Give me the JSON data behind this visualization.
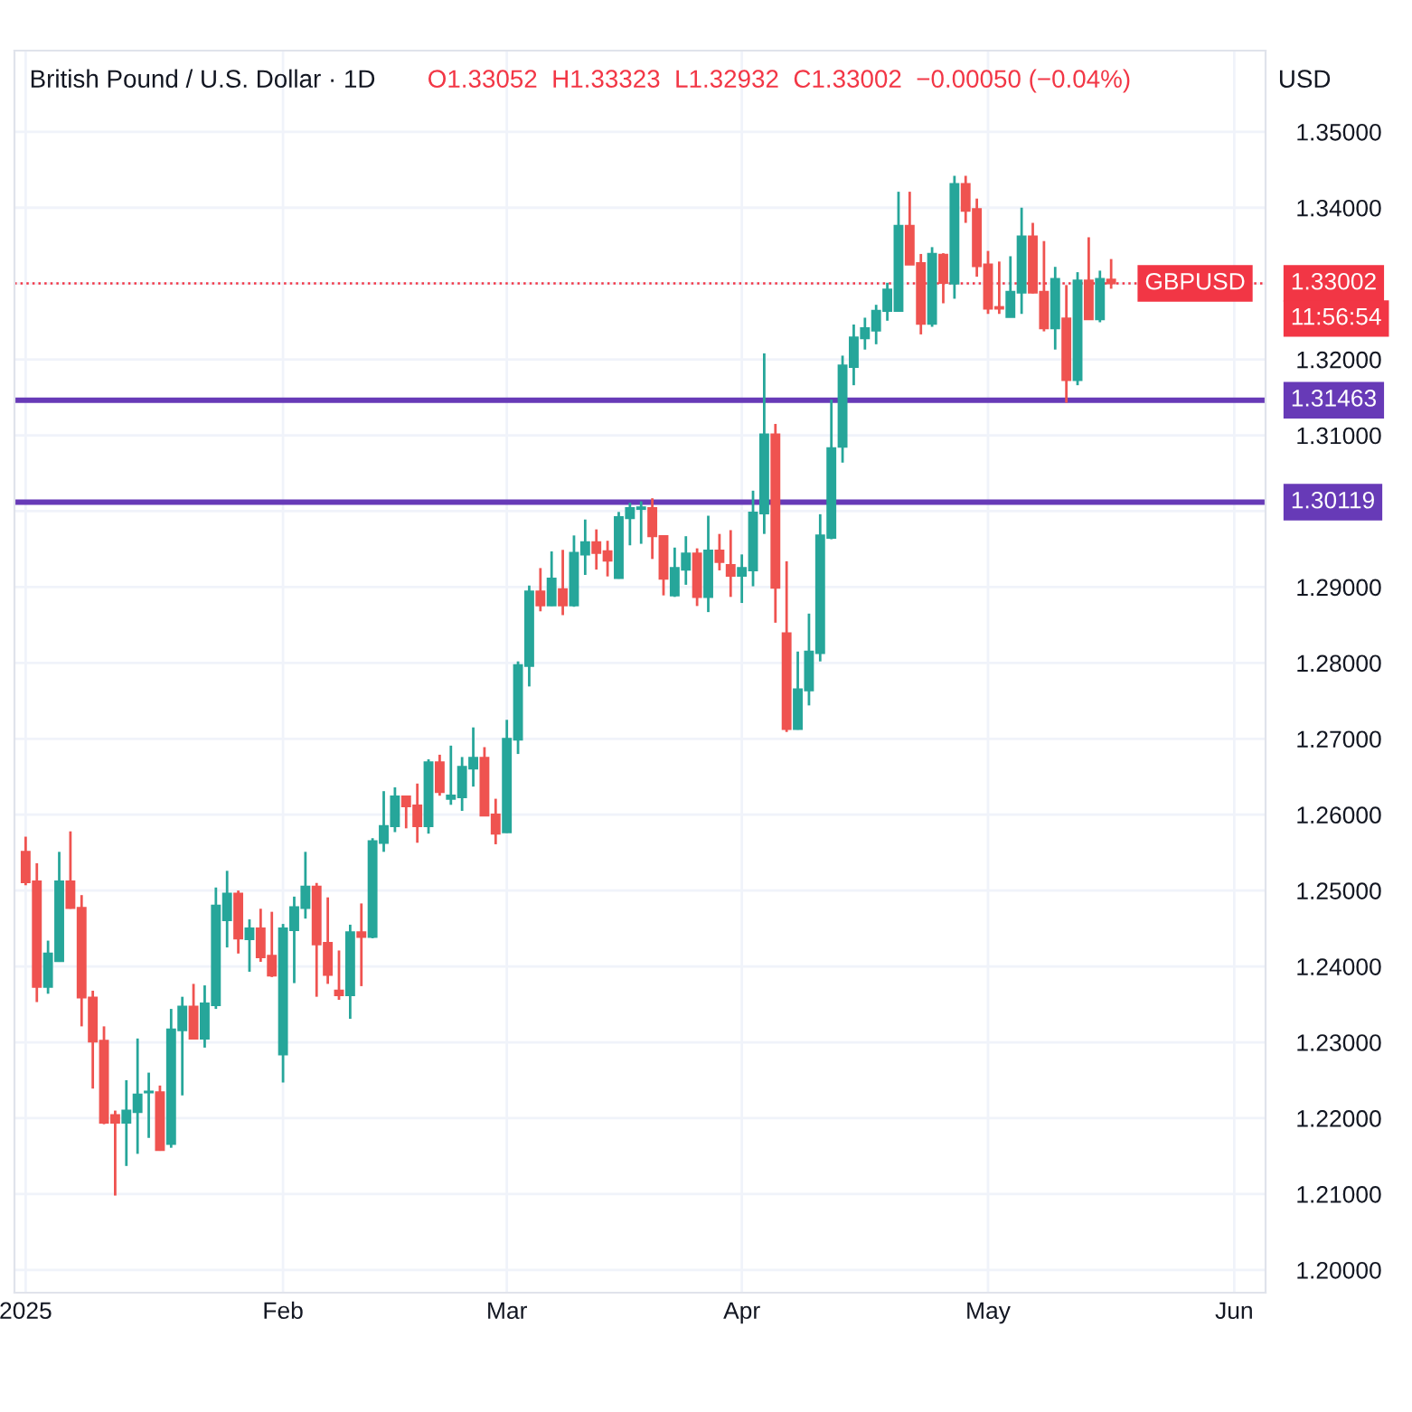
{
  "chart_data": {
    "type": "candlestick",
    "title": "British Pound / U.S. Dollar · 1D",
    "subtitle": "O1.33052  H1.33323  L1.32932  C1.33002  −0.00050 (−0.04%)",
    "ylabel": "USD",
    "categories": [
      "2025",
      null,
      null,
      null,
      null,
      null,
      null,
      null,
      null,
      null,
      null,
      null,
      null,
      null,
      null,
      null,
      null,
      null,
      null,
      null,
      null,
      null,
      null,
      "Feb",
      null,
      null,
      null,
      null,
      null,
      null,
      null,
      null,
      null,
      null,
      null,
      null,
      null,
      null,
      null,
      null,
      null,
      null,
      null,
      "Mar",
      null,
      null,
      null,
      null,
      null,
      null,
      null,
      null,
      null,
      null,
      null,
      null,
      null,
      null,
      null,
      null,
      null,
      null,
      null,
      null,
      "Apr",
      null,
      null,
      null,
      null,
      null,
      null,
      null,
      null,
      null,
      null,
      null,
      null,
      null,
      null,
      null,
      null,
      null,
      null,
      null,
      null,
      null,
      "May",
      null,
      null,
      null,
      null,
      null,
      null,
      null,
      null,
      null,
      null,
      null,
      null,
      null,
      null,
      null,
      null,
      null,
      null,
      null,
      null,
      null,
      "Jun",
      null,
      null
    ],
    "ohlc": [
      [
        1.2551,
        1.2571,
        1.2507,
        1.2511
      ],
      [
        1.2512,
        1.2536,
        1.2353,
        1.2373
      ],
      [
        1.2373,
        1.2434,
        1.2364,
        1.2417
      ],
      [
        1.2407,
        1.2551,
        1.2406,
        1.2512
      ],
      [
        1.2512,
        1.2578,
        1.2476,
        1.2477
      ],
      [
        1.2477,
        1.2494,
        1.2321,
        1.2359
      ],
      [
        1.2359,
        1.2368,
        1.2239,
        1.2301
      ],
      [
        1.2302,
        1.2321,
        1.2192,
        1.2194
      ],
      [
        1.2204,
        1.221,
        1.2098,
        1.2194
      ],
      [
        1.2194,
        1.225,
        1.2137,
        1.221
      ],
      [
        1.2208,
        1.2305,
        1.2153,
        1.2231
      ],
      [
        1.2234,
        1.226,
        1.2174,
        1.2235
      ],
      [
        1.2234,
        1.2243,
        1.2157,
        1.2158
      ],
      [
        1.2166,
        1.2344,
        1.2161,
        1.2317
      ],
      [
        1.2316,
        1.236,
        1.223,
        1.2347
      ],
      [
        1.2347,
        1.2377,
        1.2304,
        1.2305
      ],
      [
        1.2305,
        1.2375,
        1.2293,
        1.2351
      ],
      [
        1.2349,
        1.2504,
        1.2344,
        1.248
      ],
      [
        1.2461,
        1.2526,
        1.2425,
        1.2496
      ],
      [
        1.2496,
        1.25,
        1.2417,
        1.2437
      ],
      [
        1.2436,
        1.2462,
        1.2393,
        1.245
      ],
      [
        1.245,
        1.2476,
        1.2406,
        1.2412
      ],
      [
        1.2414,
        1.2472,
        1.2386,
        1.2388
      ],
      [
        1.2284,
        1.2456,
        1.2247,
        1.245
      ],
      [
        1.2448,
        1.2492,
        1.2378,
        1.2478
      ],
      [
        1.2477,
        1.2551,
        1.2463,
        1.2505
      ],
      [
        1.2505,
        1.251,
        1.236,
        1.2429
      ],
      [
        1.2431,
        1.2491,
        1.2377,
        1.2389
      ],
      [
        1.2368,
        1.2421,
        1.2356,
        1.2362
      ],
      [
        1.2362,
        1.2455,
        1.2331,
        1.2445
      ],
      [
        1.2445,
        1.2483,
        1.2374,
        1.2439
      ],
      [
        1.2439,
        1.2569,
        1.2437,
        1.2565
      ],
      [
        1.2563,
        1.2631,
        1.2551,
        1.2585
      ],
      [
        1.2585,
        1.2636,
        1.2577,
        1.2624
      ],
      [
        1.2624,
        1.2625,
        1.2582,
        1.2611
      ],
      [
        1.2612,
        1.2641,
        1.2563,
        1.2585
      ],
      [
        1.2585,
        1.2673,
        1.2575,
        1.2669
      ],
      [
        1.2669,
        1.2679,
        1.2625,
        1.263
      ],
      [
        1.2621,
        1.2691,
        1.2613,
        1.2625
      ],
      [
        1.2623,
        1.2676,
        1.2605,
        1.2663
      ],
      [
        1.2661,
        1.2715,
        1.2637,
        1.2675
      ],
      [
        1.2675,
        1.2689,
        1.2598,
        1.2599
      ],
      [
        1.26,
        1.2621,
        1.2561,
        1.2575
      ],
      [
        1.2577,
        1.2725,
        1.2576,
        1.27
      ],
      [
        1.2699,
        1.2802,
        1.268,
        1.2797
      ],
      [
        1.2796,
        1.2902,
        1.2769,
        1.2894
      ],
      [
        1.2894,
        1.2925,
        1.2868,
        1.2876
      ],
      [
        1.2876,
        1.2947,
        1.2875,
        1.2911
      ],
      [
        1.2897,
        1.2949,
        1.2863,
        1.2876
      ],
      [
        1.2876,
        1.2968,
        1.2874,
        1.2945
      ],
      [
        1.2943,
        1.2989,
        1.2916,
        1.2959
      ],
      [
        1.2959,
        1.2976,
        1.2923,
        1.2945
      ],
      [
        1.2947,
        1.2961,
        1.2914,
        1.2935
      ],
      [
        1.2912,
        1.2999,
        1.2911,
        1.2992
      ],
      [
        1.2991,
        1.3011,
        1.2955,
        1.3004
      ],
      [
        1.3003,
        1.3013,
        1.2957,
        1.3005
      ],
      [
        1.3004,
        1.3017,
        1.2937,
        1.2967
      ],
      [
        1.2967,
        1.2968,
        1.2889,
        1.2911
      ],
      [
        1.2889,
        1.2952,
        1.2887,
        1.2925
      ],
      [
        1.2923,
        1.2967,
        1.2903,
        1.2944
      ],
      [
        1.2944,
        1.2951,
        1.2875,
        1.2887
      ],
      [
        1.2887,
        1.2994,
        1.2867,
        1.2948
      ],
      [
        1.2948,
        1.297,
        1.2922,
        1.2933
      ],
      [
        1.2929,
        1.2975,
        1.2887,
        1.2915
      ],
      [
        1.2915,
        1.2943,
        1.2879,
        1.2925
      ],
      [
        1.2922,
        1.3027,
        1.2901,
        1.2998
      ],
      [
        1.2997,
        1.3208,
        1.297,
        1.3101
      ],
      [
        1.3101,
        1.3115,
        1.2853,
        1.2899
      ],
      [
        1.2839,
        1.2934,
        1.2709,
        1.2713
      ],
      [
        1.2713,
        1.2815,
        1.2712,
        1.2765
      ],
      [
        1.2764,
        1.2865,
        1.2744,
        1.2815
      ],
      [
        1.2813,
        1.2996,
        1.2802,
        1.2968
      ],
      [
        1.2965,
        1.3147,
        1.2963,
        1.3083
      ],
      [
        1.3085,
        1.3205,
        1.3064,
        1.3192
      ],
      [
        1.319,
        1.3246,
        1.3166,
        1.3229
      ],
      [
        1.3228,
        1.3255,
        1.3213,
        1.3241
      ],
      [
        1.3238,
        1.3272,
        1.322,
        1.3264
      ],
      [
        1.3264,
        1.3301,
        1.3251,
        1.3292
      ],
      [
        1.3264,
        1.3421,
        1.3263,
        1.3376
      ],
      [
        1.3376,
        1.3421,
        1.3325,
        1.3325
      ],
      [
        1.3327,
        1.3339,
        1.3233,
        1.3247
      ],
      [
        1.3247,
        1.3348,
        1.3243,
        1.3339
      ],
      [
        1.3338,
        1.334,
        1.3274,
        1.3301
      ],
      [
        1.33,
        1.3442,
        1.328,
        1.3431
      ],
      [
        1.3431,
        1.3442,
        1.338,
        1.3396
      ],
      [
        1.3398,
        1.3412,
        1.3309,
        1.3323
      ],
      [
        1.3325,
        1.3343,
        1.326,
        1.3267
      ],
      [
        1.3269,
        1.3329,
        1.326,
        1.3267
      ],
      [
        1.3256,
        1.3336,
        1.3256,
        1.3289
      ],
      [
        1.3288,
        1.34,
        1.326,
        1.3362
      ],
      [
        1.3362,
        1.338,
        1.3287,
        1.3288
      ],
      [
        1.3289,
        1.3356,
        1.3237,
        1.3241
      ],
      [
        1.3241,
        1.3322,
        1.3213,
        1.3306
      ],
      [
        1.3254,
        1.3298,
        1.3143,
        1.3173
      ],
      [
        1.3173,
        1.3315,
        1.3166,
        1.3304
      ],
      [
        1.3304,
        1.3361,
        1.3252,
        1.3253
      ],
      [
        1.3253,
        1.3317,
        1.3249,
        1.3306
      ],
      [
        1.33052,
        1.33323,
        1.32932,
        1.33002
      ],
      null,
      null,
      null,
      null,
      null,
      null,
      null,
      null,
      null,
      null,
      null,
      null,
      null
    ],
    "colors": [
      "#ef5350",
      "#ef5350",
      "#26a69a",
      "#26a69a",
      "#ef5350",
      "#ef5350",
      "#ef5350",
      "#ef5350",
      "#ef5350",
      "#26a69a",
      "#26a69a",
      "#26a69a",
      "#ef5350",
      "#26a69a",
      "#26a69a",
      "#ef5350",
      "#26a69a",
      "#26a69a",
      "#26a69a",
      "#ef5350",
      "#26a69a",
      "#ef5350",
      "#ef5350",
      "#26a69a",
      "#26a69a",
      "#26a69a",
      "#ef5350",
      "#ef5350",
      "#ef5350",
      "#26a69a",
      "#ef5350",
      "#26a69a",
      "#26a69a",
      "#26a69a",
      "#ef5350",
      "#ef5350",
      "#26a69a",
      "#ef5350",
      "#26a69a",
      "#26a69a",
      "#26a69a",
      "#ef5350",
      "#ef5350",
      "#26a69a",
      "#26a69a",
      "#26a69a",
      "#ef5350",
      "#26a69a",
      "#ef5350",
      "#26a69a",
      "#26a69a",
      "#ef5350",
      "#ef5350",
      "#26a69a",
      "#26a69a",
      "#26a69a",
      "#ef5350",
      "#ef5350",
      "#26a69a",
      "#26a69a",
      "#ef5350",
      "#26a69a",
      "#ef5350",
      "#ef5350",
      "#26a69a",
      "#26a69a",
      "#26a69a",
      "#ef5350",
      "#ef5350",
      "#26a69a",
      "#26a69a",
      "#26a69a",
      "#26a69a",
      "#26a69a",
      "#26a69a",
      "#26a69a",
      "#26a69a",
      "#26a69a",
      "#26a69a",
      "#ef5350",
      "#ef5350",
      "#26a69a",
      "#ef5350",
      "#26a69a",
      "#ef5350",
      "#ef5350",
      "#ef5350",
      "#ef5350",
      "#26a69a",
      "#26a69a",
      "#ef5350",
      "#ef5350",
      "#26a69a",
      "#ef5350",
      "#26a69a",
      "#ef5350",
      "#26a69a",
      "#ef5350",
      null,
      null,
      null,
      null,
      null,
      null,
      null,
      null,
      null,
      null,
      null,
      null,
      null
    ],
    "ylim": [
      1.197,
      1.3607
    ],
    "yticks": [
      {
        "value": 1.2,
        "label": "1.20000"
      },
      {
        "value": 1.21,
        "label": "1.21000"
      },
      {
        "value": 1.22,
        "label": "1.22000"
      },
      {
        "value": 1.23,
        "label": "1.23000"
      },
      {
        "value": 1.24,
        "label": "1.24000"
      },
      {
        "value": 1.25,
        "label": "1.25000"
      },
      {
        "value": 1.26,
        "label": "1.26000"
      },
      {
        "value": 1.27,
        "label": "1.27000"
      },
      {
        "value": 1.28,
        "label": "1.28000"
      },
      {
        "value": 1.29,
        "label": "1.29000"
      },
      {
        "value": 1.3,
        "label": null
      },
      {
        "value": 1.31,
        "label": "1.31000"
      },
      {
        "value": 1.32,
        "label": "1.32000"
      },
      {
        "value": 1.33,
        "label": null
      },
      {
        "value": 1.34,
        "label": "1.34000"
      },
      {
        "value": 1.35,
        "label": "1.35000"
      }
    ],
    "ref_lines": [
      {
        "axis": "y",
        "value": 1.31463,
        "label": "1.31463",
        "color": "#673ab7",
        "line_style": "solid"
      },
      {
        "axis": "y",
        "value": 1.30119,
        "label": "1.30119",
        "color": "#673ab7",
        "line_style": "solid"
      },
      {
        "axis": "y",
        "value": 1.33002,
        "label": "1.33002",
        "color": "#f23645",
        "line_style": "dotted"
      }
    ],
    "annotations": [
      {
        "text": "GBPUSD",
        "y": 1.33002
      },
      "11:56:54"
    ],
    "grid": true
  }
}
